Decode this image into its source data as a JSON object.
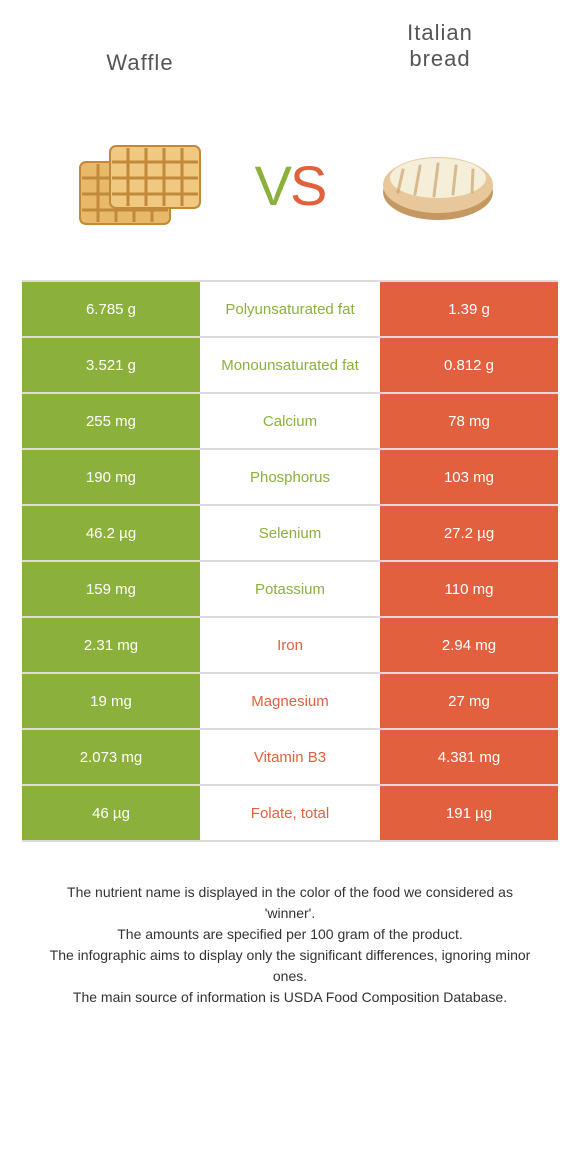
{
  "colors": {
    "green": "#8bb13c",
    "orange": "#e2603e",
    "waffle_fill": "#e8b968",
    "waffle_dark": "#c08a3a",
    "bread_fill": "#e8c89a",
    "bread_dark": "#c49860",
    "bread_light": "#f5eed8"
  },
  "header": {
    "left_title": "Waffle",
    "right_title": "Italian\nbread",
    "vs_v": "V",
    "vs_s": "S"
  },
  "table": {
    "rows": [
      {
        "left": "6.785 g",
        "label": "Polyunsaturated fat",
        "right": "1.39 g",
        "winner": "left"
      },
      {
        "left": "3.521 g",
        "label": "Monounsaturated fat",
        "right": "0.812 g",
        "winner": "left"
      },
      {
        "left": "255 mg",
        "label": "Calcium",
        "right": "78 mg",
        "winner": "left"
      },
      {
        "left": "190 mg",
        "label": "Phosphorus",
        "right": "103 mg",
        "winner": "left"
      },
      {
        "left": "46.2 µg",
        "label": "Selenium",
        "right": "27.2 µg",
        "winner": "left"
      },
      {
        "left": "159 mg",
        "label": "Potassium",
        "right": "110 mg",
        "winner": "left"
      },
      {
        "left": "2.31 mg",
        "label": "Iron",
        "right": "2.94 mg",
        "winner": "right"
      },
      {
        "left": "19 mg",
        "label": "Magnesium",
        "right": "27 mg",
        "winner": "right"
      },
      {
        "left": "2.073 mg",
        "label": "Vitamin B3",
        "right": "4.381 mg",
        "winner": "right"
      },
      {
        "left": "46 µg",
        "label": "Folate, total",
        "right": "191 µg",
        "winner": "right"
      }
    ]
  },
  "footer": {
    "line1": "The nutrient name is displayed in the color of the food we considered as 'winner'.",
    "line2": "The amounts are specified per 100 gram of the product.",
    "line3": "The infographic aims to display only the significant differences, ignoring minor ones.",
    "line4": "The main source of information is USDA Food Composition Database."
  }
}
